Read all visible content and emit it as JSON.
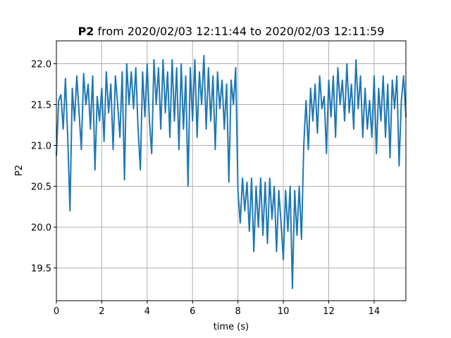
{
  "chart_data": {
    "type": "line",
    "title_bold": "P2",
    "title_rest": " from 2020/02/03 12:11:44 to 2020/02/03 12:11:59",
    "xlabel": "time (s)",
    "ylabel": "P2",
    "xlim": [
      0,
      15.4
    ],
    "ylim": [
      19.1,
      22.28
    ],
    "xticks": [
      0,
      2,
      4,
      6,
      8,
      10,
      12,
      14
    ],
    "xtick_labels": [
      "0",
      "2",
      "4",
      "6",
      "8",
      "10",
      "12",
      "14"
    ],
    "yticks": [
      19.5,
      20.0,
      20.5,
      21.0,
      21.5,
      22.0
    ],
    "ytick_labels": [
      "19.5",
      "20.0",
      "20.5",
      "21.0",
      "21.5",
      "22.0"
    ],
    "grid": true,
    "series": [
      {
        "color": "#1f77b4",
        "x": [
          0.0,
          0.1,
          0.2,
          0.3,
          0.4,
          0.5,
          0.6,
          0.7,
          0.8,
          0.9,
          1.0,
          1.1,
          1.2,
          1.3,
          1.4,
          1.5,
          1.6,
          1.7,
          1.8,
          1.9,
          2.0,
          2.1,
          2.2,
          2.3,
          2.4,
          2.5,
          2.6,
          2.7,
          2.8,
          2.9,
          3.0,
          3.1,
          3.2,
          3.3,
          3.4,
          3.5,
          3.6,
          3.7,
          3.8,
          3.9,
          4.0,
          4.1,
          4.2,
          4.3,
          4.4,
          4.5,
          4.6,
          4.7,
          4.8,
          4.9,
          5.0,
          5.1,
          5.2,
          5.3,
          5.4,
          5.5,
          5.6,
          5.7,
          5.8,
          5.9,
          6.0,
          6.1,
          6.2,
          6.3,
          6.4,
          6.5,
          6.6,
          6.7,
          6.8,
          6.9,
          7.0,
          7.1,
          7.2,
          7.3,
          7.4,
          7.5,
          7.6,
          7.7,
          7.8,
          7.9,
          8.0,
          8.1,
          8.2,
          8.3,
          8.4,
          8.5,
          8.6,
          8.7,
          8.8,
          8.9,
          9.0,
          9.1,
          9.2,
          9.3,
          9.4,
          9.5,
          9.6,
          9.7,
          9.8,
          9.9,
          10.0,
          10.1,
          10.2,
          10.3,
          10.4,
          10.5,
          10.6,
          10.7,
          10.8,
          10.9,
          11.0,
          11.1,
          11.2,
          11.3,
          11.4,
          11.5,
          11.6,
          11.7,
          11.8,
          11.9,
          12.0,
          12.1,
          12.2,
          12.3,
          12.4,
          12.5,
          12.6,
          12.7,
          12.8,
          12.9,
          13.0,
          13.1,
          13.2,
          13.3,
          13.4,
          13.5,
          13.6,
          13.7,
          13.8,
          13.9,
          14.0,
          14.1,
          14.2,
          14.3,
          14.4,
          14.5,
          14.6,
          14.7,
          14.8,
          14.9,
          15.0,
          15.1,
          15.2,
          15.3,
          15.4
        ],
        "y": [
          20.88,
          21.55,
          21.62,
          21.2,
          21.82,
          21.1,
          20.2,
          21.7,
          21.3,
          21.85,
          21.4,
          20.95,
          21.88,
          21.5,
          21.75,
          21.2,
          21.85,
          20.7,
          21.6,
          21.3,
          21.7,
          21.05,
          21.9,
          21.4,
          21.75,
          20.95,
          21.85,
          21.5,
          21.1,
          21.9,
          20.58,
          22.0,
          21.5,
          21.9,
          21.45,
          21.95,
          21.2,
          20.7,
          21.9,
          21.35,
          22.0,
          21.3,
          20.9,
          22.05,
          21.5,
          21.95,
          21.2,
          22.05,
          21.4,
          21.9,
          21.1,
          22.05,
          21.3,
          21.95,
          20.95,
          22.0,
          21.2,
          21.85,
          20.5,
          21.95,
          21.3,
          22.05,
          21.1,
          21.9,
          21.5,
          22.1,
          21.2,
          21.95,
          21.3,
          21.85,
          20.95,
          21.9,
          21.45,
          21.8,
          21.2,
          21.75,
          20.55,
          21.8,
          21.5,
          21.95,
          20.45,
          20.05,
          20.6,
          20.2,
          20.55,
          19.95,
          20.6,
          19.7,
          20.5,
          20.0,
          20.6,
          19.9,
          20.55,
          19.8,
          20.6,
          20.1,
          20.5,
          19.7,
          20.45,
          20.05,
          19.6,
          20.45,
          19.95,
          20.5,
          19.25,
          20.45,
          19.9,
          20.5,
          19.85,
          21.0,
          21.55,
          20.95,
          21.7,
          21.3,
          21.75,
          21.15,
          21.85,
          21.45,
          21.6,
          20.9,
          21.8,
          21.35,
          21.85,
          21.1,
          21.95,
          21.5,
          21.8,
          21.3,
          22.0,
          21.4,
          21.75,
          21.2,
          22.05,
          21.45,
          21.85,
          21.1,
          21.7,
          21.2,
          21.55,
          21.1,
          21.85,
          20.9,
          21.7,
          21.3,
          21.85,
          21.1,
          21.75,
          20.85,
          21.8,
          21.45,
          21.85,
          20.75,
          21.55,
          21.85,
          21.35
        ]
      }
    ]
  }
}
